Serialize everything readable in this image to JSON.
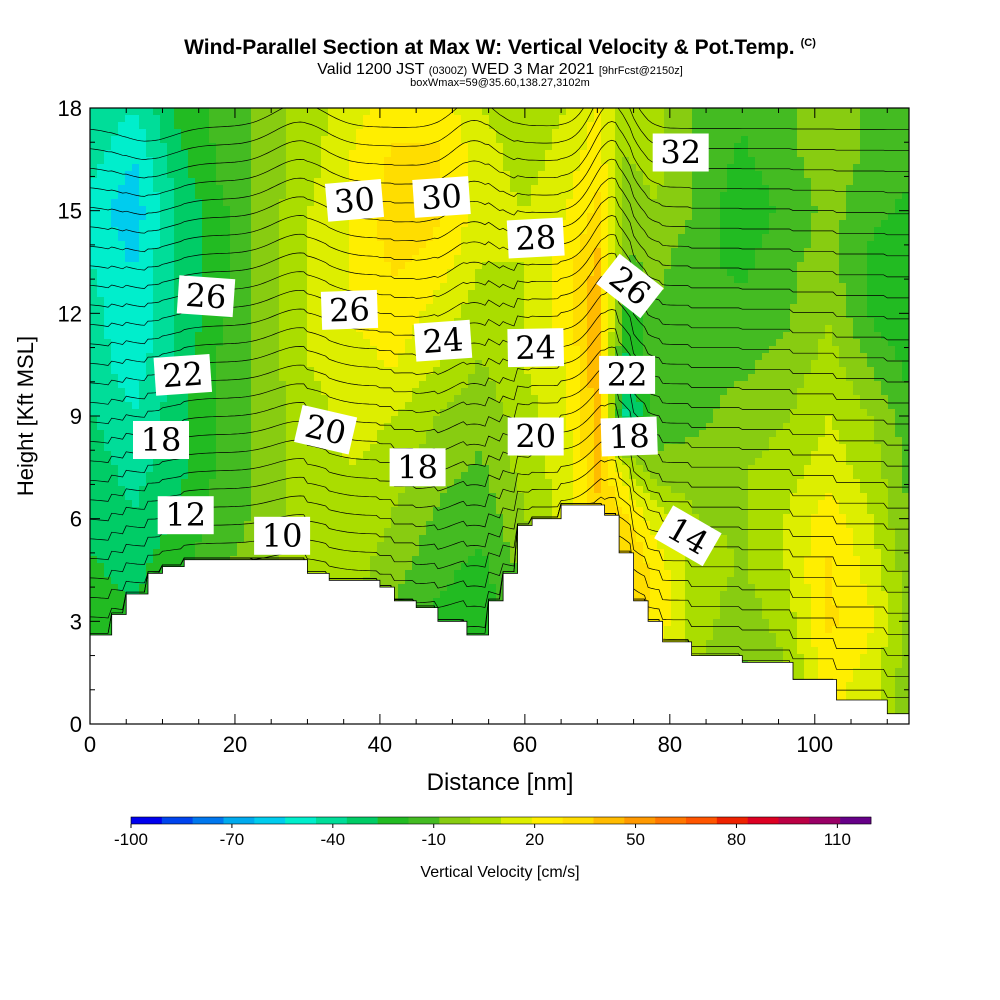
{
  "chart_data": {
    "type": "heatmap",
    "title": "Wind-Parallel Section at Max W: Vertical Velocity & Pot.Temp.",
    "title_suffix": "(C)",
    "valid_prefix": "Valid 1200 JST",
    "valid_utc": "(0300Z)",
    "valid_date": "WED 3 Mar 2021",
    "forecast_info": "[9hrFcst@2150z]",
    "box_info": "boxWmax=59@35.60,138.27,3102m",
    "xlabel": "Distance [nm]",
    "ylabel": "Height [Kft MSL]",
    "xlim": [
      0,
      113
    ],
    "ylim": [
      0,
      18
    ],
    "xticks": [
      "0",
      "20",
      "40",
      "60",
      "80",
      "100"
    ],
    "xtick_values": [
      0,
      20,
      40,
      60,
      80,
      100
    ],
    "yticks": [
      "0",
      "3",
      "6",
      "9",
      "12",
      "15",
      "18"
    ],
    "ytick_values": [
      0,
      3,
      6,
      9,
      12,
      15,
      18
    ],
    "colorbar": {
      "label": "Vertical Velocity [cm/s]",
      "tick_labels": [
        "-100",
        "-70",
        "-40",
        "-10",
        "20",
        "50",
        "80",
        "110"
      ],
      "tick_values": [
        -100,
        -70,
        -40,
        -10,
        20,
        50,
        80,
        110
      ],
      "range": [
        -100,
        120
      ],
      "colors": [
        "#0000ee",
        "#0044ee",
        "#0077ee",
        "#00aaee",
        "#00ccee",
        "#00eecc",
        "#00dd99",
        "#00cc66",
        "#22bb22",
        "#44bb22",
        "#88cc11",
        "#aadd00",
        "#ddee00",
        "#ffee00",
        "#ffdd00",
        "#ffbb00",
        "#ff9900",
        "#ff7700",
        "#ff5500",
        "#ee2200",
        "#dd0022",
        "#bb0044",
        "#990066",
        "#660088"
      ]
    },
    "terrain_height_kft": [
      [
        0,
        2.6
      ],
      [
        3,
        2.6
      ],
      [
        3,
        3.2
      ],
      [
        5,
        3.2
      ],
      [
        5,
        3.8
      ],
      [
        8,
        3.8
      ],
      [
        8,
        4.4
      ],
      [
        10,
        4.4
      ],
      [
        10,
        4.6
      ],
      [
        13,
        4.6
      ],
      [
        13,
        4.8
      ],
      [
        30,
        4.8
      ],
      [
        30,
        4.4
      ],
      [
        33,
        4.4
      ],
      [
        33,
        4.2
      ],
      [
        40,
        4.2
      ],
      [
        40,
        4.0
      ],
      [
        42,
        4.0
      ],
      [
        42,
        3.6
      ],
      [
        45,
        3.6
      ],
      [
        45,
        3.4
      ],
      [
        48,
        3.4
      ],
      [
        48,
        3.0
      ],
      [
        52,
        3.0
      ],
      [
        52,
        2.6
      ],
      [
        55,
        2.6
      ],
      [
        55,
        3.6
      ],
      [
        57,
        3.6
      ],
      [
        57,
        4.4
      ],
      [
        59,
        4.4
      ],
      [
        59,
        5.8
      ],
      [
        61,
        5.8
      ],
      [
        61,
        6.0
      ],
      [
        65,
        6.0
      ],
      [
        65,
        6.4
      ],
      [
        71,
        6.4
      ],
      [
        71,
        6.1
      ],
      [
        73,
        6.1
      ],
      [
        73,
        5.0
      ],
      [
        75,
        5.0
      ],
      [
        75,
        3.6
      ],
      [
        77,
        3.6
      ],
      [
        77,
        3.0
      ],
      [
        79,
        3.0
      ],
      [
        79,
        2.4
      ],
      [
        83,
        2.4
      ],
      [
        83,
        2.0
      ],
      [
        90,
        2.0
      ],
      [
        90,
        1.8
      ],
      [
        97,
        1.8
      ],
      [
        97,
        1.3
      ],
      [
        103,
        1.3
      ],
      [
        103,
        0.7
      ],
      [
        110,
        0.7
      ],
      [
        110,
        0.3
      ],
      [
        113,
        0.3
      ]
    ],
    "w_field_cm_s": {
      "x": [
        0,
        6,
        12,
        18,
        24,
        30,
        36,
        42,
        48,
        54,
        60,
        66,
        70,
        74,
        78,
        84,
        90,
        96,
        102,
        108,
        113
      ],
      "y": [
        0,
        1.5,
        3,
        4.5,
        6,
        7.5,
        9,
        10.5,
        12,
        13.5,
        15,
        16.5,
        18
      ],
      "values": [
        [
          -20,
          -25,
          -15,
          -10,
          -5,
          -5,
          -10,
          -15,
          -20,
          -25,
          -10,
          0,
          10,
          20,
          15,
          0,
          -10,
          -5,
          20,
          10,
          -5
        ],
        [
          -25,
          -25,
          -20,
          -10,
          -5,
          0,
          -5,
          -15,
          -20,
          -25,
          -10,
          0,
          15,
          30,
          20,
          0,
          -10,
          0,
          25,
          15,
          -5
        ],
        [
          -20,
          -25,
          -20,
          -10,
          0,
          5,
          0,
          -10,
          -20,
          -25,
          -10,
          5,
          20,
          35,
          25,
          5,
          -5,
          5,
          30,
          20,
          -5
        ],
        [
          -25,
          -30,
          -20,
          -10,
          0,
          5,
          5,
          -5,
          -15,
          -20,
          -5,
          10,
          30,
          40,
          25,
          5,
          0,
          10,
          30,
          15,
          -5
        ],
        [
          -30,
          -35,
          -25,
          -15,
          -5,
          5,
          10,
          0,
          -10,
          -15,
          0,
          15,
          35,
          30,
          15,
          0,
          0,
          10,
          25,
          10,
          -10
        ],
        [
          -30,
          -40,
          -30,
          -15,
          -5,
          5,
          10,
          5,
          -5,
          -10,
          5,
          15,
          40,
          10,
          -5,
          -5,
          0,
          5,
          15,
          5,
          -10
        ],
        [
          -35,
          -45,
          -30,
          -15,
          -5,
          5,
          15,
          10,
          0,
          -5,
          5,
          20,
          40,
          -40,
          -15,
          -10,
          -5,
          0,
          10,
          0,
          -15
        ],
        [
          -40,
          -50,
          -35,
          -15,
          -5,
          10,
          15,
          20,
          10,
          0,
          10,
          20,
          45,
          -30,
          -10,
          -10,
          -10,
          -5,
          5,
          -10,
          -20
        ],
        [
          -40,
          -55,
          -35,
          -20,
          -5,
          10,
          20,
          25,
          15,
          5,
          10,
          25,
          45,
          -25,
          -10,
          -15,
          -15,
          -10,
          0,
          -20,
          -25
        ],
        [
          -45,
          -55,
          -35,
          -20,
          -5,
          10,
          20,
          30,
          25,
          10,
          10,
          25,
          40,
          -10,
          -5,
          -15,
          -20,
          -10,
          -5,
          -20,
          -25
        ],
        [
          -50,
          -60,
          -35,
          -20,
          -5,
          10,
          20,
          35,
          30,
          15,
          10,
          20,
          30,
          -5,
          0,
          -10,
          -25,
          -15,
          -5,
          -15,
          -20
        ],
        [
          -40,
          -55,
          -30,
          -15,
          -5,
          5,
          20,
          30,
          30,
          15,
          5,
          15,
          25,
          0,
          5,
          -10,
          -20,
          -10,
          -5,
          -10,
          -15
        ],
        [
          -35,
          -45,
          -25,
          -15,
          -5,
          5,
          15,
          25,
          25,
          10,
          5,
          10,
          20,
          5,
          5,
          -10,
          -15,
          -10,
          -5,
          -10,
          -10
        ]
      ]
    },
    "theta_contours": {
      "levels_c": [
        6,
        7,
        8,
        9,
        10,
        11,
        12,
        13,
        14,
        15,
        16,
        17,
        18,
        19,
        20,
        21,
        22,
        23,
        24,
        25,
        26,
        27,
        28,
        29,
        30,
        31,
        32,
        33
      ],
      "labels": [
        {
          "text": "32",
          "x": 81.5,
          "y": 16.7,
          "rot": 0
        },
        {
          "text": "30",
          "x": 36.5,
          "y": 15.3,
          "rot": -5
        },
        {
          "text": "30",
          "x": 48.5,
          "y": 15.4,
          "rot": -4
        },
        {
          "text": "28",
          "x": 61.5,
          "y": 14.2,
          "rot": -3
        },
        {
          "text": "26",
          "x": 16,
          "y": 12.5,
          "rot": 4
        },
        {
          "text": "26",
          "x": 35.8,
          "y": 12.1,
          "rot": -2
        },
        {
          "text": "26",
          "x": 74.5,
          "y": 12.8,
          "rot": 38
        },
        {
          "text": "24",
          "x": 48.7,
          "y": 11.2,
          "rot": -4
        },
        {
          "text": "24",
          "x": 61.5,
          "y": 11.0,
          "rot": -1
        },
        {
          "text": "22",
          "x": 12.8,
          "y": 10.2,
          "rot": -4
        },
        {
          "text": "22",
          "x": 74.1,
          "y": 10.2,
          "rot": 0
        },
        {
          "text": "20",
          "x": 32.5,
          "y": 8.6,
          "rot": 13
        },
        {
          "text": "20",
          "x": 61.5,
          "y": 8.4,
          "rot": 0
        },
        {
          "text": "18",
          "x": 9.8,
          "y": 8.3,
          "rot": 0
        },
        {
          "text": "18",
          "x": 74.4,
          "y": 8.4,
          "rot": -2
        },
        {
          "text": "18",
          "x": 45.2,
          "y": 7.5,
          "rot": 0
        },
        {
          "text": "12",
          "x": 13.2,
          "y": 6.1,
          "rot": 0
        },
        {
          "text": "10",
          "x": 26.5,
          "y": 5.5,
          "rot": 0
        },
        {
          "text": "14",
          "x": 82.5,
          "y": 5.5,
          "rot": 30
        }
      ]
    }
  }
}
